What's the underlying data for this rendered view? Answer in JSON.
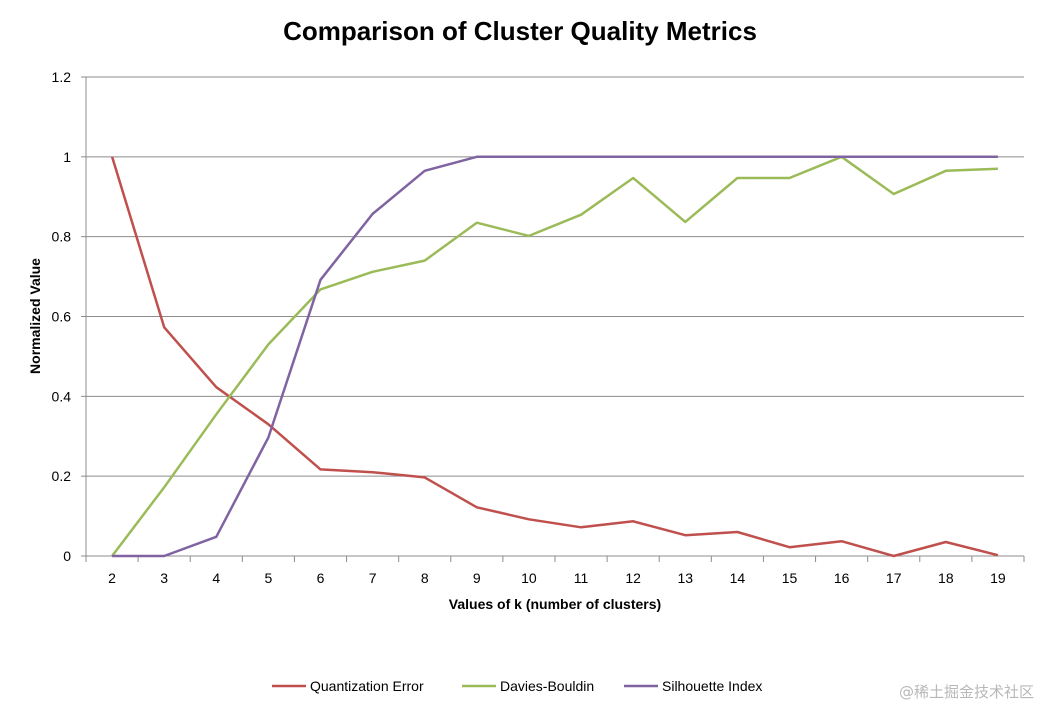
{
  "chart_data": {
    "type": "line",
    "title": "Comparison of Cluster Quality Metrics",
    "xlabel": "Values of k (number of clusters)",
    "ylabel": "Normalized Value",
    "ylim": [
      0,
      1.2
    ],
    "yticks": [
      "0",
      "0.2",
      "0.4",
      "0.6",
      "0.8",
      "1",
      "1.2"
    ],
    "grid": true,
    "legend_position": "bottom",
    "x": [
      "2",
      "3",
      "4",
      "5",
      "6",
      "7",
      "8",
      "9",
      "10",
      "11",
      "12",
      "13",
      "14",
      "15",
      "16",
      "17",
      "18",
      "19"
    ],
    "series": [
      {
        "name": "Quantization Error",
        "color": "#C0504D",
        "values": [
          1.0,
          0.573,
          0.423,
          0.33,
          0.217,
          0.21,
          0.197,
          0.122,
          0.092,
          0.072,
          0.087,
          0.052,
          0.06,
          0.022,
          0.037,
          0.0,
          0.035,
          0.002
        ]
      },
      {
        "name": "Davies-Bouldin",
        "color": "#9BBB59",
        "values": [
          0.0,
          0.172,
          0.355,
          0.53,
          0.668,
          0.712,
          0.74,
          0.835,
          0.802,
          0.855,
          0.947,
          0.837,
          0.947,
          0.947,
          1.0,
          0.907,
          0.965,
          0.97
        ]
      },
      {
        "name": "Silhouette Index",
        "color": "#8064A2",
        "values": [
          0.0,
          0.0,
          0.048,
          0.297,
          0.692,
          0.857,
          0.965,
          1.0,
          1.0,
          1.0,
          1.0,
          1.0,
          1.0,
          1.0,
          1.0,
          1.0,
          1.0,
          1.0
        ]
      }
    ]
  },
  "watermark": "@稀土掘金技术社区"
}
